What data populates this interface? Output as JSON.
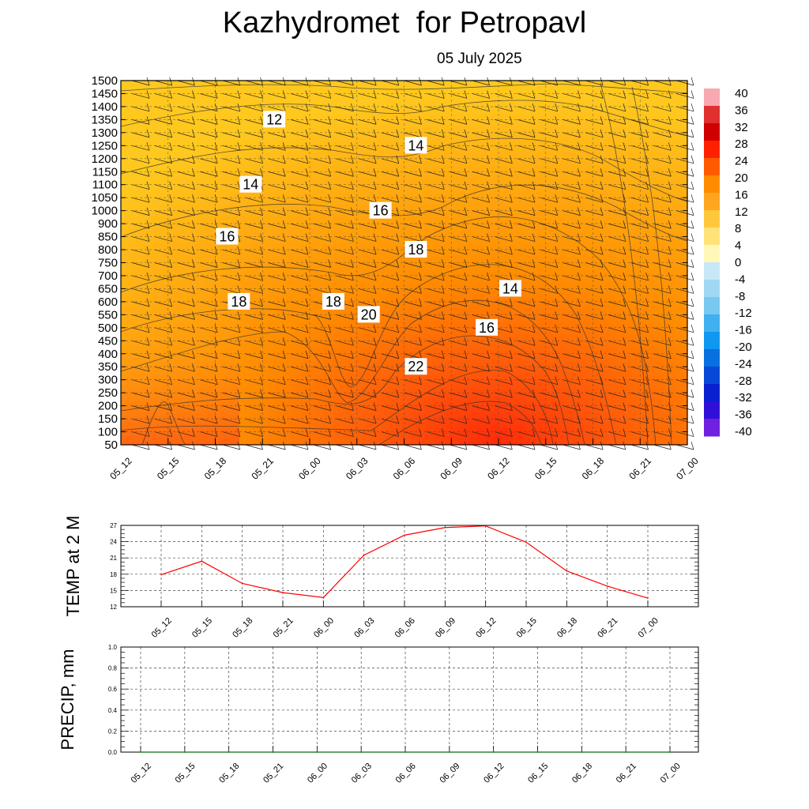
{
  "title": "Kazhydromet  for Petropavl",
  "subtitle": "05 July 2025",
  "chart_data": [
    {
      "type": "heatmap",
      "name": "cross-section",
      "x_ticks": [
        "05_12",
        "05_15",
        "05_18",
        "05_21",
        "06_00",
        "06_03",
        "06_06",
        "06_09",
        "06_12",
        "06_15",
        "06_18",
        "06_21",
        "07_00"
      ],
      "y_ticks": [
        50,
        100,
        150,
        200,
        250,
        300,
        350,
        400,
        450,
        500,
        550,
        600,
        650,
        700,
        750,
        800,
        850,
        900,
        1000,
        1050,
        1100,
        1150,
        1200,
        1250,
        1300,
        1350,
        1400,
        1450,
        1500
      ],
      "colorbar": {
        "labels": [
          40,
          36,
          32,
          28,
          24,
          20,
          16,
          12,
          8,
          4,
          0,
          -4,
          -8,
          -12,
          -16,
          -20,
          -24,
          -28,
          -32,
          -36,
          -40
        ],
        "range": [
          -40,
          40
        ]
      },
      "contour_labels": [
        {
          "value": "12",
          "x": "06_01",
          "y": 1350
        },
        {
          "value": "14",
          "x": "06_13",
          "y": 1250
        },
        {
          "value": "14",
          "x": "05_23",
          "y": 1100
        },
        {
          "value": "16",
          "x": "06_10",
          "y": 1000
        },
        {
          "value": "16",
          "x": "05_21",
          "y": 850
        },
        {
          "value": "18",
          "x": "06_13",
          "y": 800
        },
        {
          "value": "14",
          "x": "06_21",
          "y": 650
        },
        {
          "value": "18",
          "x": "05_22",
          "y": 600
        },
        {
          "value": "18",
          "x": "06_06",
          "y": 600
        },
        {
          "value": "20",
          "x": "06_09",
          "y": 550
        },
        {
          "value": "16",
          "x": "06_19",
          "y": 500
        },
        {
          "value": "22",
          "x": "06_13",
          "y": 350
        }
      ],
      "colors": {
        "hot": "#ff2a0a",
        "warm": "#ff8c00",
        "cool": "#ffc81e"
      }
    },
    {
      "type": "line",
      "ylabel": "TEMP at 2 M",
      "categories": [
        "05_12",
        "05_15",
        "05_18",
        "05_21",
        "06_00",
        "06_03",
        "06_06",
        "06_09",
        "06_12",
        "06_15",
        "06_18",
        "06_21",
        "07_00"
      ],
      "values": [
        17.9,
        20.4,
        16.3,
        14.6,
        13.7,
        21.5,
        25.2,
        26.6,
        26.9,
        23.9,
        18.6,
        15.8,
        13.6
      ],
      "y_ticks": [
        12,
        15,
        18,
        21,
        24,
        27
      ],
      "ylim": [
        12,
        27
      ],
      "color": "#ff0000",
      "grid": true
    },
    {
      "type": "line",
      "ylabel": "PRECIP, mm",
      "categories": [
        "05_12",
        "05_15",
        "05_18",
        "05_21",
        "06_00",
        "06_03",
        "06_06",
        "06_09",
        "06_12",
        "06_15",
        "06_18",
        "06_21",
        "07_00"
      ],
      "values": [
        0,
        0,
        0,
        0,
        0,
        0,
        0,
        0,
        0,
        0,
        0,
        0,
        0
      ],
      "y_ticks": [
        "0.0",
        "0.2",
        "0.4",
        "0.6",
        "0.8",
        "1.0"
      ],
      "ylim": [
        0,
        1
      ],
      "color": "#007000",
      "grid": true
    }
  ]
}
